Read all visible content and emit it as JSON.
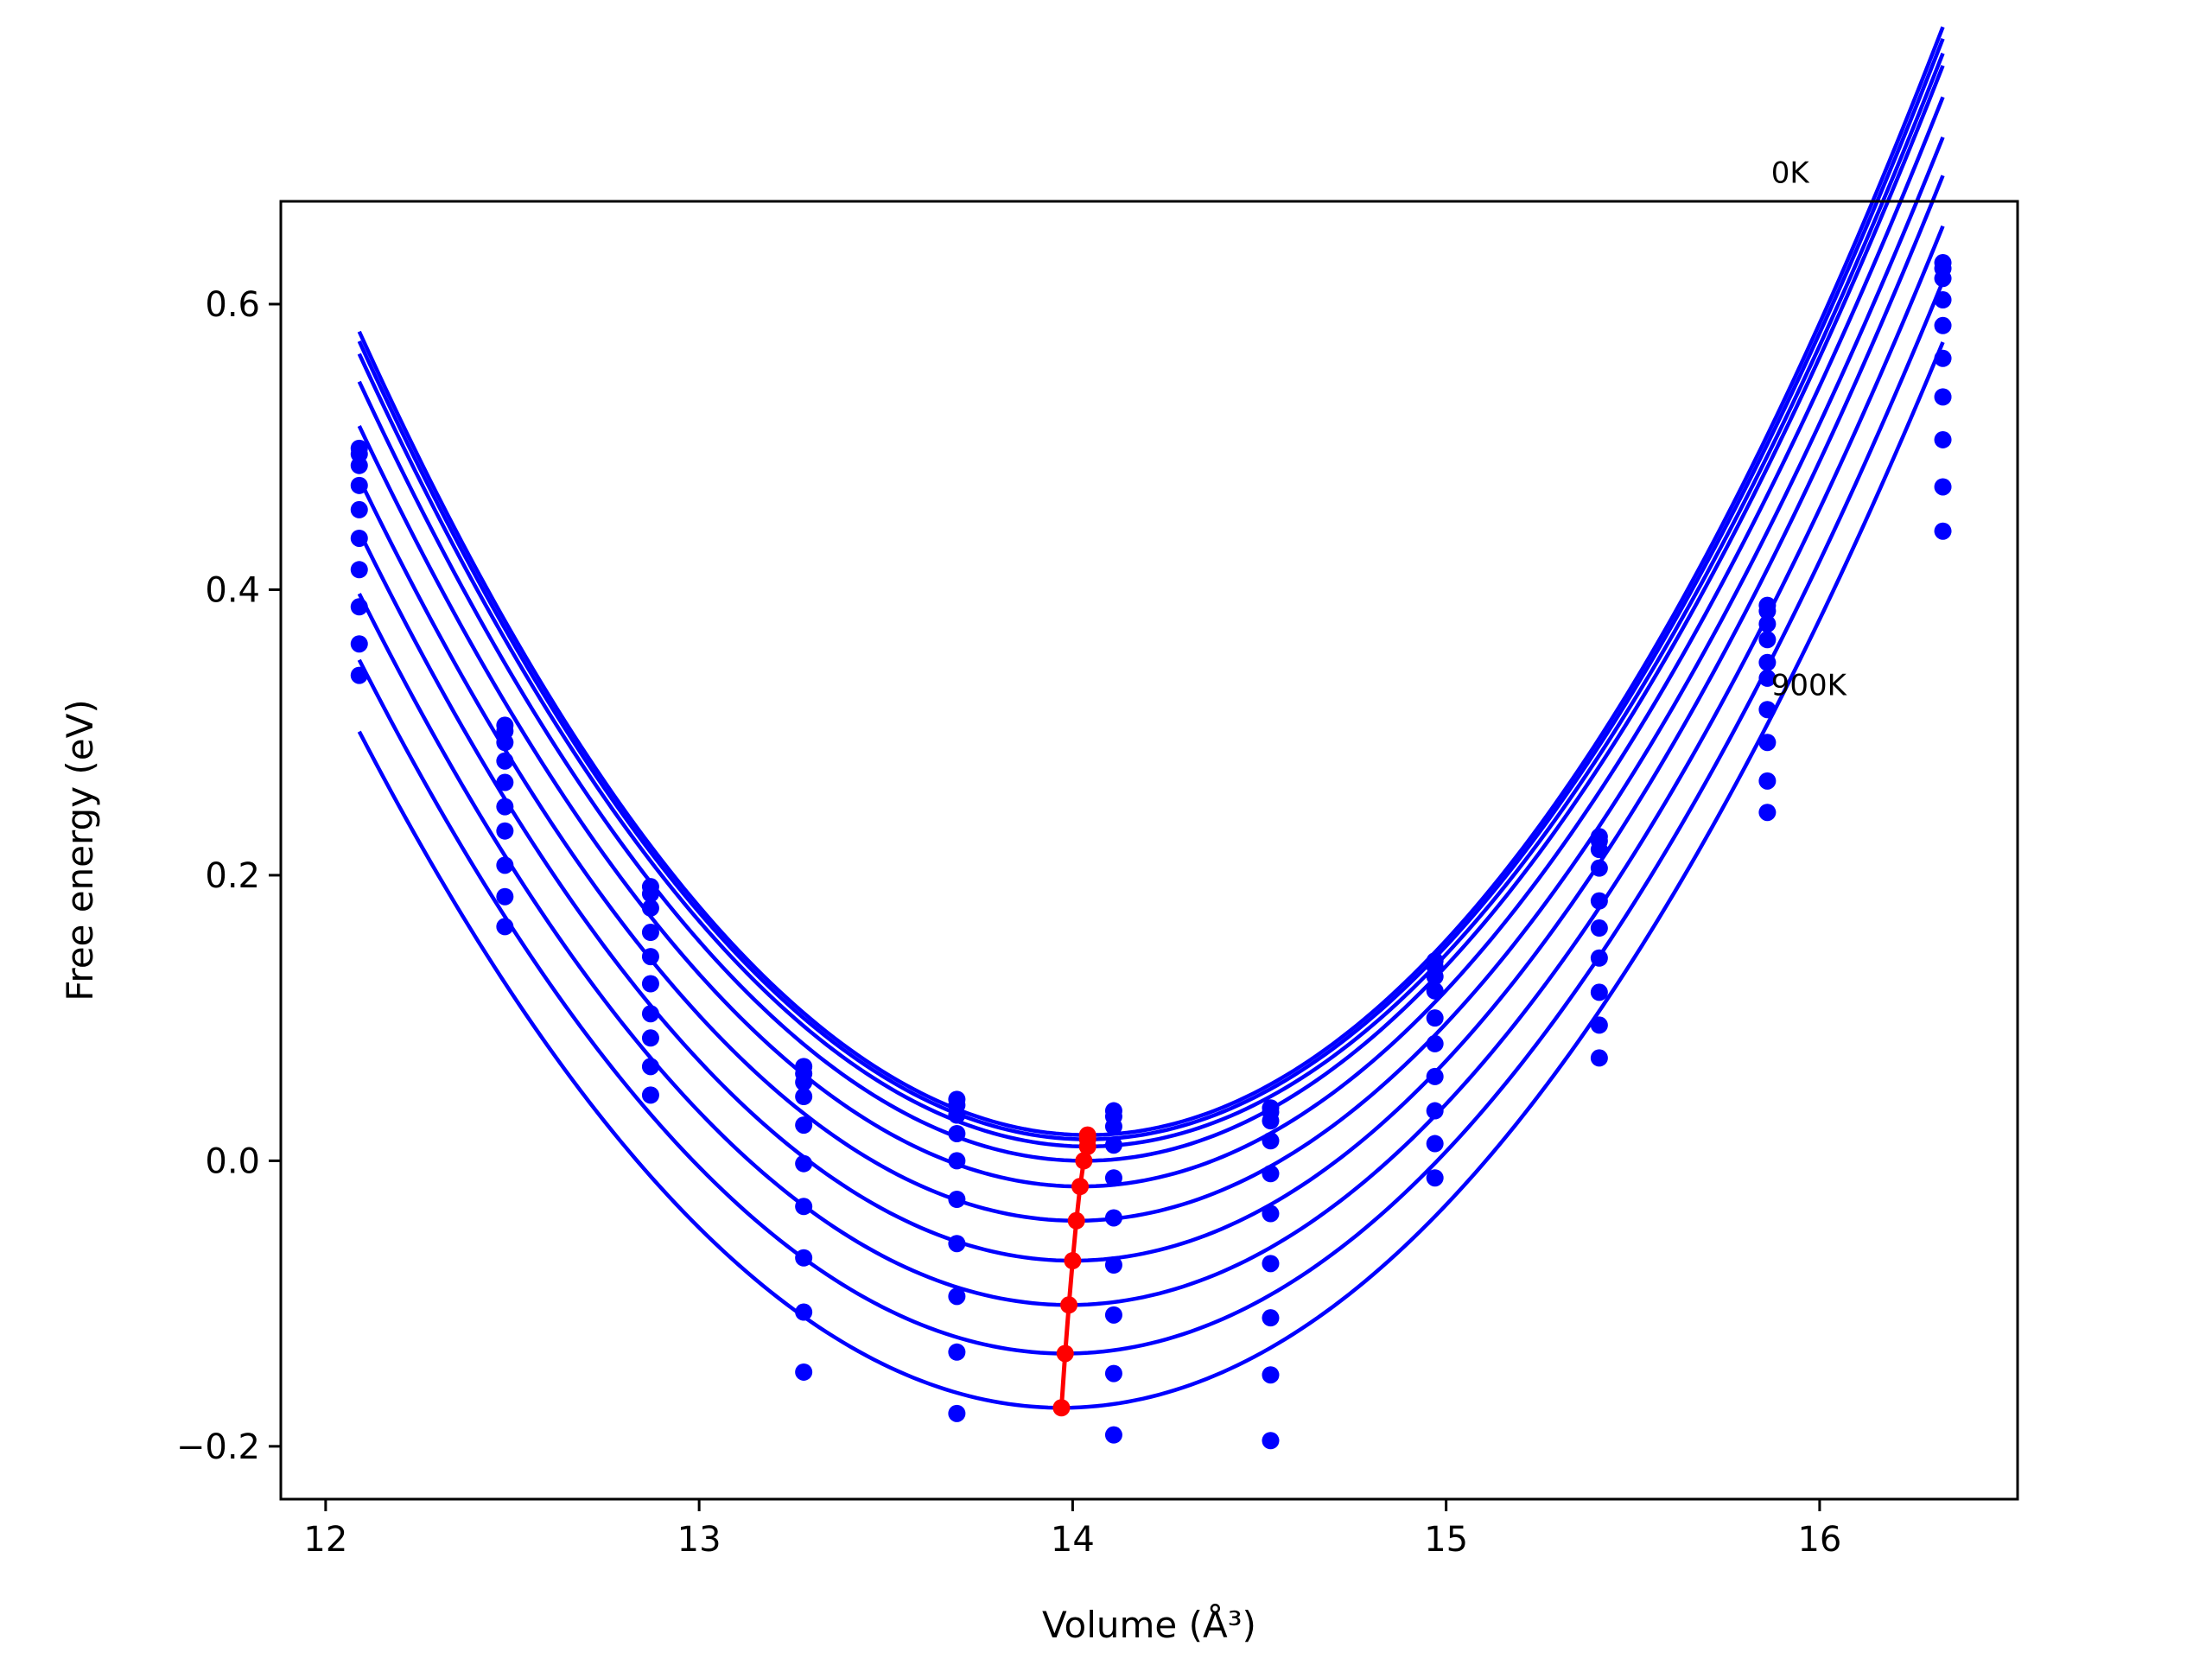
{
  "chart_data": {
    "type": "line",
    "xlabel": "Volume (Å³)",
    "ylabel": "Free energy (eV)",
    "xlim": [
      11.88,
      16.53
    ],
    "ylim": [
      -0.237,
      0.672
    ],
    "xticks": [
      12,
      13,
      14,
      15,
      16
    ],
    "yticks": [
      -0.2,
      0.0,
      0.2,
      0.4,
      0.6
    ],
    "ytick_labels": [
      "−0.2",
      "0.0",
      "0.2",
      "0.4",
      "0.6"
    ],
    "grid": false,
    "legend": "none",
    "colors": {
      "curves": "#0000ff",
      "minima": "#ff0000",
      "frame": "#000000"
    },
    "annotations": [
      {
        "text": "0K",
        "x": 15.87,
        "y": 0.685
      },
      {
        "text": "900K",
        "x": 15.87,
        "y": 0.326
      }
    ],
    "volumes": [
      12.09,
      12.48,
      12.87,
      13.28,
      13.69,
      14.11,
      14.53,
      14.97,
      15.41,
      15.86,
      16.33
    ],
    "series": [
      {
        "values": [
          0.499,
          0.305,
          0.192,
          0.066,
          0.043,
          0.035,
          0.037,
          0.14,
          0.227,
          0.389,
          0.629
        ],
        "fit": {
          "a": 0.148,
          "v0": 14.04,
          "e0": 0.018
        }
      },
      {
        "values": [
          0.495,
          0.301,
          0.187,
          0.061,
          0.039,
          0.031,
          0.034,
          0.136,
          0.224,
          0.385,
          0.625
        ],
        "fit": {
          "a": 0.147,
          "v0": 14.04,
          "e0": 0.015
        }
      },
      {
        "values": [
          0.487,
          0.293,
          0.177,
          0.055,
          0.032,
          0.024,
          0.028,
          0.129,
          0.218,
          0.376,
          0.618
        ],
        "fit": {
          "a": 0.146,
          "v0": 14.04,
          "e0": 0.01
        }
      },
      {
        "values": [
          0.473,
          0.28,
          0.16,
          0.045,
          0.019,
          0.011,
          0.014,
          0.119,
          0.205,
          0.365,
          0.603
        ],
        "fit": {
          "a": 0.145,
          "v0": 14.03,
          "e0": 0.0
        }
      },
      {
        "values": [
          0.456,
          0.265,
          0.143,
          0.025,
          0.0,
          -0.012,
          -0.009,
          0.1,
          0.182,
          0.349,
          0.585
        ],
        "fit": {
          "a": 0.143,
          "v0": 14.02,
          "e0": -0.018
        }
      },
      {
        "values": [
          0.436,
          0.248,
          0.124,
          -0.002,
          -0.027,
          -0.04,
          -0.037,
          0.082,
          0.163,
          0.338,
          0.562
        ],
        "fit": {
          "a": 0.141,
          "v0": 14.01,
          "e0": -0.042
        }
      },
      {
        "values": [
          0.414,
          0.231,
          0.103,
          -0.032,
          -0.058,
          -0.073,
          -0.072,
          0.059,
          0.142,
          0.316,
          0.535
        ],
        "fit": {
          "a": 0.14,
          "v0": 14.0,
          "e0": -0.07
        }
      },
      {
        "values": [
          0.388,
          0.207,
          0.086,
          -0.068,
          -0.095,
          -0.108,
          -0.11,
          0.035,
          0.118,
          0.293,
          0.505
        ],
        "fit": {
          "a": 0.138,
          "v0": 13.99,
          "e0": -0.101
        }
      },
      {
        "values": [
          0.362,
          0.185,
          0.066,
          -0.106,
          -0.134,
          -0.149,
          -0.15,
          0.012,
          0.095,
          0.266,
          0.472
        ],
        "fit": {
          "a": 0.136,
          "v0": 13.98,
          "e0": -0.135
        }
      },
      {
        "values": [
          0.34,
          0.164,
          0.046,
          -0.148,
          -0.177,
          -0.192,
          -0.196,
          -0.012,
          0.072,
          0.244,
          0.441
        ],
        "fit": {
          "a": 0.134,
          "v0": 13.97,
          "e0": -0.173
        }
      }
    ],
    "minima": {
      "x": [
        14.04,
        14.04,
        14.04,
        14.03,
        14.02,
        14.01,
        14.0,
        13.99,
        13.98,
        13.97
      ],
      "y": [
        0.018,
        0.015,
        0.01,
        0.0,
        -0.018,
        -0.042,
        -0.07,
        -0.101,
        -0.135,
        -0.173
      ]
    }
  }
}
